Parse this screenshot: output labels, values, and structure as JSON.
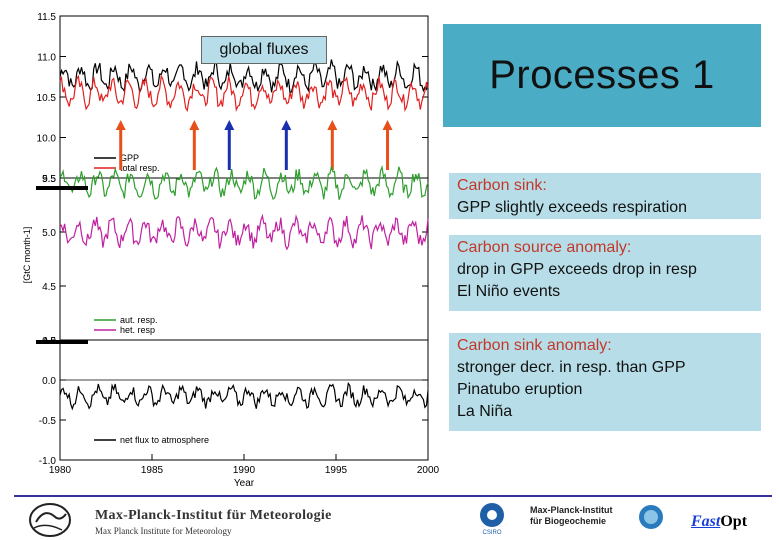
{
  "slide": {
    "title": "Processes 1",
    "plot_label": "global fluxes"
  },
  "panels": [
    {
      "heading": "Carbon sink:",
      "lines": [
        "GPP slightly exceeds respiration"
      ]
    },
    {
      "heading": "Carbon source anomaly:",
      "lines": [
        "drop in GPP exceeds drop in resp",
        "El Niño events"
      ]
    },
    {
      "heading": "Carbon sink anomaly:",
      "lines": [
        "stronger decr. in resp. than GPP",
        "Pinatubo eruption",
        "La Niña"
      ]
    }
  ],
  "chart_data": {
    "type": "line",
    "xlabel": "Year",
    "ylabel": "[GtC month-1]",
    "xlim": [
      1980,
      2000
    ],
    "x_ticks": [
      "1980",
      "1985",
      "1990",
      "1995",
      "2000"
    ],
    "panels": [
      {
        "ylim": [
          9.5,
          11.5
        ],
        "y_ticks": [
          "9.5",
          "10.0",
          "10.5",
          "11.0",
          "11.5"
        ],
        "legend": [
          "GPP",
          "total resp."
        ],
        "series": [
          {
            "name": "GPP",
            "color": "#000000",
            "level": 10.75
          },
          {
            "name": "total resp.",
            "color": "#e02020",
            "level": 10.55
          }
        ],
        "event_arrows": [
          {
            "year": 1983.3,
            "color": "#e8501a",
            "direction": "up"
          },
          {
            "year": 1987.3,
            "color": "#e8501a",
            "direction": "up"
          },
          {
            "year": 1989.2,
            "color": "#1a2fb0",
            "direction": "up"
          },
          {
            "year": 1992.3,
            "color": "#1a2fb0",
            "direction": "up"
          },
          {
            "year": 1994.8,
            "color": "#e8501a",
            "direction": "up"
          },
          {
            "year": 1997.8,
            "color": "#e8501a",
            "direction": "up"
          }
        ]
      },
      {
        "ylim": [
          4.0,
          5.5
        ],
        "y_ticks": [
          "4.0",
          "4.5",
          "5.0",
          "5.5"
        ],
        "legend": [
          "aut. resp.",
          "het. resp"
        ],
        "series": [
          {
            "name": "aut. resp.",
            "color": "#2e9e2e",
            "level": 5.45
          },
          {
            "name": "het. resp",
            "color": "#c020a0",
            "level": 5.0
          }
        ]
      },
      {
        "ylim": [
          -1.0,
          0.5
        ],
        "y_ticks": [
          "-1.0",
          "-0.5",
          "0.0",
          "0.5"
        ],
        "legend": [
          "net flux to atmosphere"
        ],
        "series": [
          {
            "name": "net flux to atmosphere",
            "color": "#000000",
            "level": -0.2
          }
        ]
      }
    ]
  },
  "footer": {
    "mpi_met_title": "Max-Planck-Institut für Meteorologie",
    "mpi_met_sub": "Max Planck Institute for Meteorology",
    "csiro": "CSIRO",
    "mpi_bgc_line1": "Max-Planck-Institut",
    "mpi_bgc_line2": "für Biogeochemie",
    "fastopt_fast": "Fast",
    "fastopt_opt": "Opt"
  }
}
